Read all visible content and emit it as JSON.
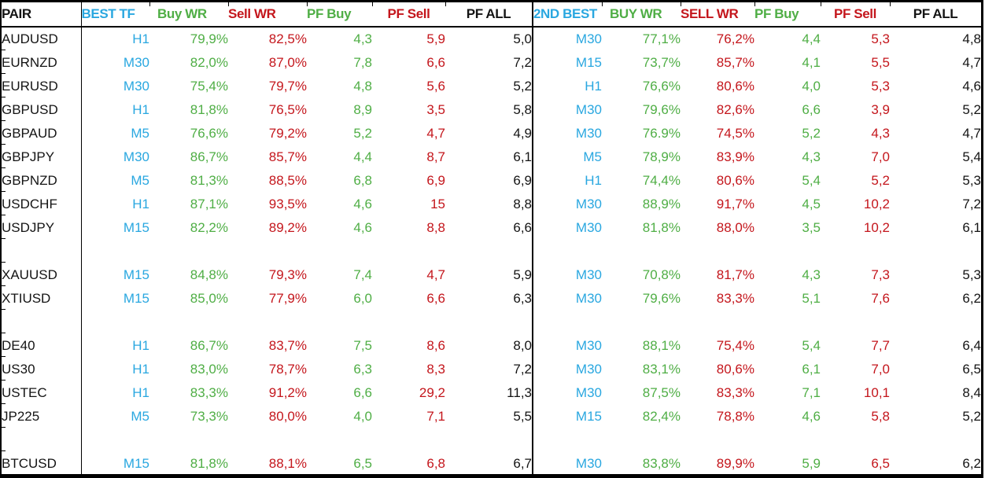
{
  "app": {
    "description": "Spreadsheet table of trading pairs with best and 2nd-best timeframe win rates and profit factors"
  },
  "colors": {
    "timeframe_blue": "#29a7e0",
    "buy_green": "#4fae45",
    "sell_red": "#c4161c",
    "text_black": "#141414",
    "grid_black": "#000000"
  },
  "table": {
    "headers": {
      "pair": "PAIR",
      "best": [
        "BEST TF",
        "Buy WR",
        "Sell WR",
        "PF Buy",
        "PF Sell",
        "PF ALL"
      ],
      "second": [
        "2ND BEST",
        "BUY WR",
        "SELL WR",
        "PF Buy",
        "PF Sell",
        "PF ALL"
      ]
    },
    "rows": [
      {
        "pair": "AUDUSD",
        "best": {
          "tf": "H1",
          "buy_wr": "79,9%",
          "sell_wr": "82,5%",
          "pf_buy": "4,3",
          "pf_sell": "5,9",
          "pf_all": "5,0"
        },
        "second": {
          "tf": "M30",
          "buy_wr": "77,1%",
          "sell_wr": "76,2%",
          "pf_buy": "4,4",
          "pf_sell": "5,3",
          "pf_all": "4,8"
        }
      },
      {
        "pair": "EURNZD",
        "best": {
          "tf": "M30",
          "buy_wr": "82,0%",
          "sell_wr": "87,0%",
          "pf_buy": "7,8",
          "pf_sell": "6,6",
          "pf_all": "7,2"
        },
        "second": {
          "tf": "M15",
          "buy_wr": "73,7%",
          "sell_wr": "85,7%",
          "pf_buy": "4,1",
          "pf_sell": "5,5",
          "pf_all": "4,7"
        }
      },
      {
        "pair": "EURUSD",
        "best": {
          "tf": "M30",
          "buy_wr": "75,4%",
          "sell_wr": "79,7%",
          "pf_buy": "4,8",
          "pf_sell": "5,6",
          "pf_all": "5,2"
        },
        "second": {
          "tf": "H1",
          "buy_wr": "76,6%",
          "sell_wr": "80,6%",
          "pf_buy": "4,0",
          "pf_sell": "5,3",
          "pf_all": "4,6"
        }
      },
      {
        "pair": "GBPUSD",
        "best": {
          "tf": "H1",
          "buy_wr": "81,8%",
          "sell_wr": "76,5%",
          "pf_buy": "8,9",
          "pf_sell": "3,5",
          "pf_all": "5,8"
        },
        "second": {
          "tf": "M30",
          "buy_wr": "79,6%",
          "sell_wr": "82,6%",
          "pf_buy": "6,6",
          "pf_sell": "3,9",
          "pf_all": "5,2"
        }
      },
      {
        "pair": "GBPAUD",
        "best": {
          "tf": "M5",
          "buy_wr": "76,6%",
          "sell_wr": "79,2%",
          "pf_buy": "5,2",
          "pf_sell": "4,7",
          "pf_all": "4,9"
        },
        "second": {
          "tf": "M30",
          "buy_wr": "76.9%",
          "sell_wr": "74,5%",
          "pf_buy": "5,2",
          "pf_sell": "4,3",
          "pf_all": "4,7"
        }
      },
      {
        "pair": "GBPJPY",
        "best": {
          "tf": "M30",
          "buy_wr": "86,7%",
          "sell_wr": "85,7%",
          "pf_buy": "4,4",
          "pf_sell": "8,7",
          "pf_all": "6,1"
        },
        "second": {
          "tf": "M5",
          "buy_wr": "78,9%",
          "sell_wr": "83,9%",
          "pf_buy": "4,3",
          "pf_sell": "7,0",
          "pf_all": "5,4"
        }
      },
      {
        "pair": "GBPNZD",
        "best": {
          "tf": "M5",
          "buy_wr": "81,3%",
          "sell_wr": "88,5%",
          "pf_buy": "6,8",
          "pf_sell": "6,9",
          "pf_all": "6,9"
        },
        "second": {
          "tf": "H1",
          "buy_wr": "74,4%",
          "sell_wr": "80,6%",
          "pf_buy": "5,4",
          "pf_sell": "5,2",
          "pf_all": "5,3"
        }
      },
      {
        "pair": "USDCHF",
        "best": {
          "tf": "H1",
          "buy_wr": "87,1%",
          "sell_wr": "93,5%",
          "pf_buy": "4,6",
          "pf_sell": "15",
          "pf_all": "8,8"
        },
        "second": {
          "tf": "M30",
          "buy_wr": "88,9%",
          "sell_wr": "91,7%",
          "pf_buy": "4,5",
          "pf_sell": "10,2",
          "pf_all": "7,2"
        }
      },
      {
        "pair": "USDJPY",
        "best": {
          "tf": "M15",
          "buy_wr": "82,2%",
          "sell_wr": "89,2%",
          "pf_buy": "4,6",
          "pf_sell": "8,8",
          "pf_all": "6,6"
        },
        "second": {
          "tf": "M30",
          "buy_wr": "81,8%",
          "sell_wr": "88,0%",
          "pf_buy": "3,5",
          "pf_sell": "10,2",
          "pf_all": "6,1"
        }
      },
      {
        "blank": true,
        "pair": ""
      },
      {
        "pair": "XAUUSD",
        "best": {
          "tf": "M15",
          "buy_wr": "84,8%",
          "sell_wr": "79,3%",
          "pf_buy": "7,4",
          "pf_sell": "4,7",
          "pf_all": "5,9"
        },
        "second": {
          "tf": "M30",
          "buy_wr": "70,8%",
          "sell_wr": "81,7%",
          "pf_buy": "4,3",
          "pf_sell": "7,3",
          "pf_all": "5,3"
        }
      },
      {
        "pair": "XTIUSD",
        "best": {
          "tf": "M15",
          "buy_wr": "85,0%",
          "sell_wr": "77,9%",
          "pf_buy": "6,0",
          "pf_sell": "6,6",
          "pf_all": "6,3"
        },
        "second": {
          "tf": "M30",
          "buy_wr": "79,6%",
          "sell_wr": "83,3%",
          "pf_buy": "5,1",
          "pf_sell": "7,6",
          "pf_all": "6,2"
        }
      },
      {
        "blank": true,
        "pair": ""
      },
      {
        "pair": "DE40",
        "best": {
          "tf": "H1",
          "buy_wr": "86,7%",
          "sell_wr": "83,7%",
          "pf_buy": "7,5",
          "pf_sell": "8,6",
          "pf_all": "8,0"
        },
        "second": {
          "tf": "M30",
          "buy_wr": "88,1%",
          "sell_wr": "75,4%",
          "pf_buy": "5,4",
          "pf_sell": "7,7",
          "pf_all": "6,4"
        }
      },
      {
        "pair": "US30",
        "best": {
          "tf": "H1",
          "buy_wr": "83,0%",
          "sell_wr": "78,7%",
          "pf_buy": "6,3",
          "pf_sell": "8,3",
          "pf_all": "7,2"
        },
        "second": {
          "tf": "M30",
          "buy_wr": "83,1%",
          "sell_wr": "80,6%",
          "pf_buy": "6,1",
          "pf_sell": "7,0",
          "pf_all": "6,5"
        }
      },
      {
        "pair": "USTEC",
        "best": {
          "tf": "H1",
          "buy_wr": "83,3%",
          "sell_wr": "91,2%",
          "pf_buy": "6,6",
          "pf_sell": "29,2",
          "pf_all": "11,3"
        },
        "second": {
          "tf": "M30",
          "buy_wr": "87,5%",
          "sell_wr": "83,3%",
          "pf_buy": "7,1",
          "pf_sell": "10,1",
          "pf_all": "8,4"
        }
      },
      {
        "pair": "JP225",
        "best": {
          "tf": "M5",
          "buy_wr": "73,3%",
          "sell_wr": "80,0%",
          "pf_buy": "4,0",
          "pf_sell": "7,1",
          "pf_all": "5,5"
        },
        "second": {
          "tf": "M15",
          "buy_wr": "82,4%",
          "sell_wr": "78,8%",
          "pf_buy": "4,6",
          "pf_sell": "5,8",
          "pf_all": "5,2"
        }
      },
      {
        "blank": true,
        "pair": ""
      },
      {
        "pair": "BTCUSD",
        "best": {
          "tf": "M15",
          "buy_wr": "81,8%",
          "sell_wr": "88,1%",
          "pf_buy": "6,5",
          "pf_sell": "6,8",
          "pf_all": "6,7"
        },
        "second": {
          "tf": "M30",
          "buy_wr": "83,8%",
          "sell_wr": "89,9%",
          "pf_buy": "5,9",
          "pf_sell": "6,5",
          "pf_all": "6,2"
        }
      }
    ]
  }
}
